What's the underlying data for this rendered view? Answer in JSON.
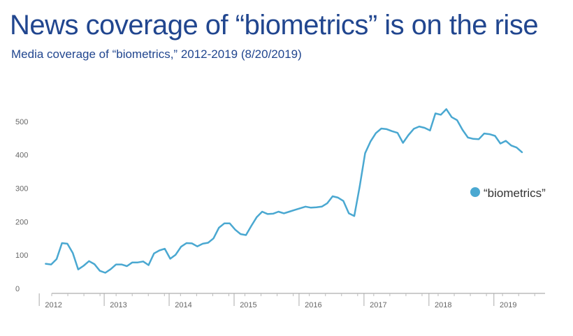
{
  "title": "News coverage of “biometrics” is on the rise",
  "subtitle": "Media coverage of “biometrics,” 2012-2019 (8/20/2019)",
  "colors": {
    "series": "#4aa8d1",
    "title": "#21468f",
    "axis": "#999999",
    "tick_text": "#666666"
  },
  "chart_data": {
    "type": "line",
    "title": "News coverage of “biometrics” is on the rise",
    "subtitle": "Media coverage of “biometrics,” 2012-2019 (8/20/2019)",
    "xlabel": "",
    "ylabel": "",
    "ylim": [
      0,
      550
    ],
    "xlim": [
      2011.92,
      2019.58
    ],
    "grid": false,
    "legend_position": "right",
    "yticks": [
      0,
      100,
      200,
      300,
      400,
      500
    ],
    "year_ticks": [
      2012,
      2013,
      2014,
      2015,
      2016,
      2017,
      2018,
      2019
    ],
    "series": [
      {
        "name": "“biometrics”",
        "x": [
          2012.0,
          2012.083,
          2012.167,
          2012.25,
          2012.333,
          2012.417,
          2012.5,
          2012.583,
          2012.667,
          2012.75,
          2012.833,
          2012.917,
          2013.0,
          2013.083,
          2013.167,
          2013.25,
          2013.333,
          2013.417,
          2013.5,
          2013.583,
          2013.667,
          2013.75,
          2013.833,
          2013.917,
          2014.0,
          2014.083,
          2014.167,
          2014.25,
          2014.333,
          2014.417,
          2014.5,
          2014.583,
          2014.667,
          2014.75,
          2014.833,
          2014.917,
          2015.0,
          2015.083,
          2015.167,
          2015.25,
          2015.333,
          2015.417,
          2015.5,
          2015.583,
          2015.667,
          2015.75,
          2015.833,
          2015.917,
          2016.0,
          2016.083,
          2016.167,
          2016.25,
          2016.333,
          2016.417,
          2016.5,
          2016.583,
          2016.667,
          2016.75,
          2016.833,
          2016.917,
          2017.0,
          2017.083,
          2017.167,
          2017.25,
          2017.333,
          2017.417,
          2017.5,
          2017.583,
          2017.667,
          2017.75,
          2017.833,
          2017.917,
          2018.0,
          2018.083,
          2018.167,
          2018.25,
          2018.333,
          2018.417,
          2018.5,
          2018.583,
          2018.667,
          2018.75,
          2018.833,
          2018.917,
          2019.0,
          2019.083,
          2019.167,
          2019.25,
          2019.333
        ],
        "values": [
          74,
          72,
          88,
          136,
          134,
          106,
          57,
          68,
          82,
          73,
          53,
          47,
          58,
          72,
          72,
          67,
          78,
          78,
          81,
          70,
          105,
          114,
          119,
          89,
          101,
          125,
          136,
          135,
          126,
          134,
          137,
          150,
          182,
          195,
          195,
          176,
          163,
          160,
          188,
          214,
          230,
          223,
          224,
          230,
          225,
          230,
          235,
          240,
          245,
          242,
          243,
          245,
          255,
          276,
          272,
          262,
          225,
          217,
          305,
          405,
          440,
          465,
          479,
          477,
          471,
          466,
          436,
          459,
          478,
          485,
          481,
          473,
          524,
          520,
          537,
          513,
          504,
          475,
          452,
          448,
          447,
          464,
          462,
          457,
          434,
          442,
          428,
          422,
          408
        ]
      }
    ]
  }
}
